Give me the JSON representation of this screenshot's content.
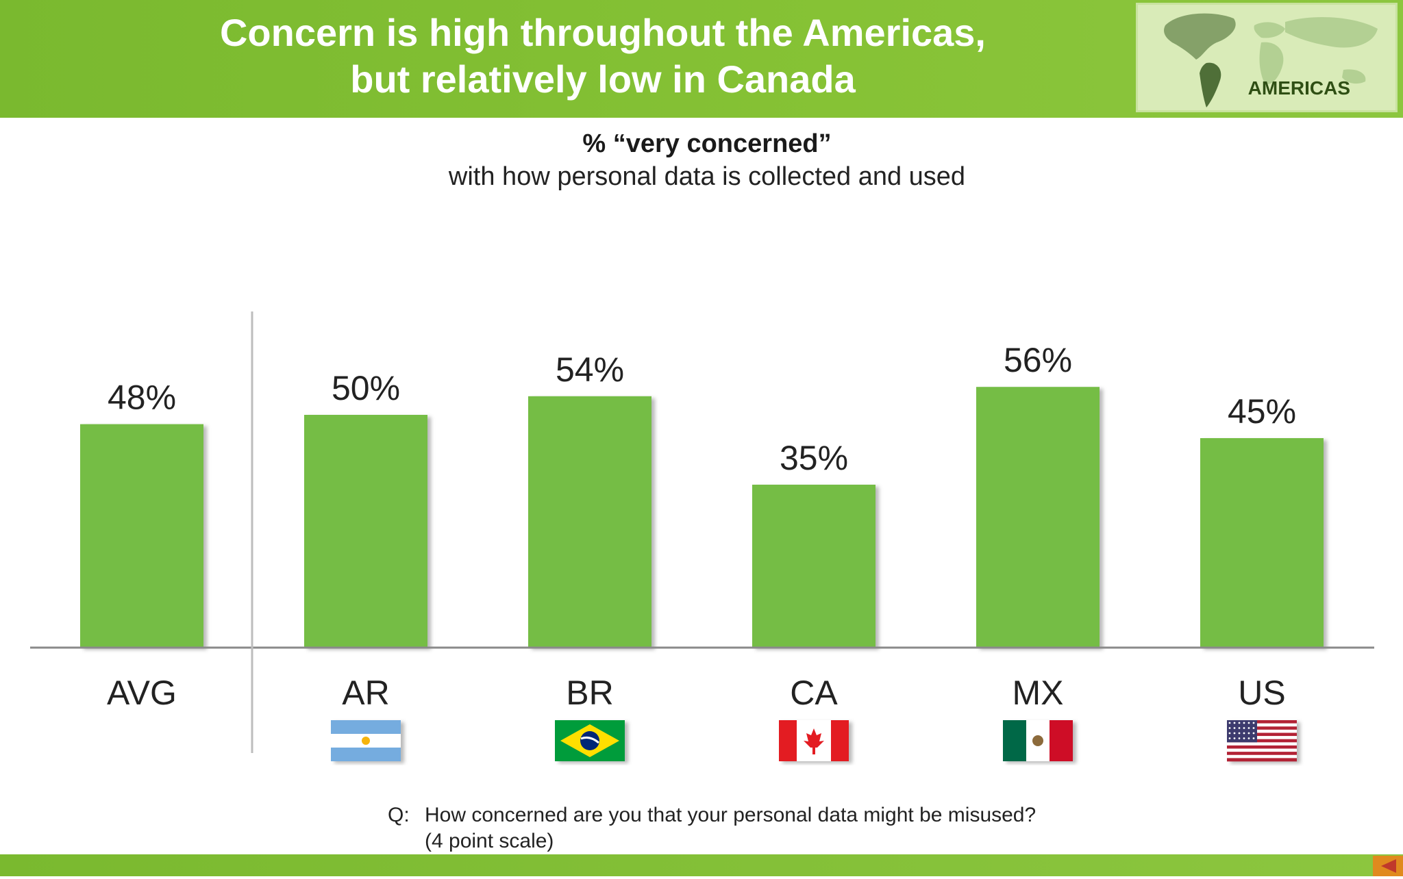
{
  "header": {
    "title_line1": "Concern is high throughout the Americas,",
    "title_line2": "but relatively low in Canada",
    "region_label": "AMERICAS"
  },
  "chart_data": {
    "type": "bar",
    "title": "% “very concerned”",
    "subtitle": "with how personal data is collected and used",
    "categories": [
      "AVG",
      "AR",
      "BR",
      "CA",
      "MX",
      "US"
    ],
    "values": [
      48,
      50,
      54,
      35,
      56,
      45
    ],
    "value_labels": [
      "48%",
      "50%",
      "54%",
      "35%",
      "56%",
      "45%"
    ],
    "flags": [
      "",
      "argentina-flag",
      "brazil-flag",
      "canada-flag",
      "mexico-flag",
      "usa-flag"
    ],
    "bar_color": "#74bd44",
    "ylim": [
      0,
      100
    ],
    "grid": false,
    "legend": "none"
  },
  "footnote": {
    "q_label": "Q:",
    "line1": "How concerned are you that your personal data might be misused?",
    "line2": "(4 point scale)"
  },
  "colors": {
    "header_green": "#86c235",
    "bar_green": "#74bd44",
    "nav_orange": "#e08a1e"
  }
}
